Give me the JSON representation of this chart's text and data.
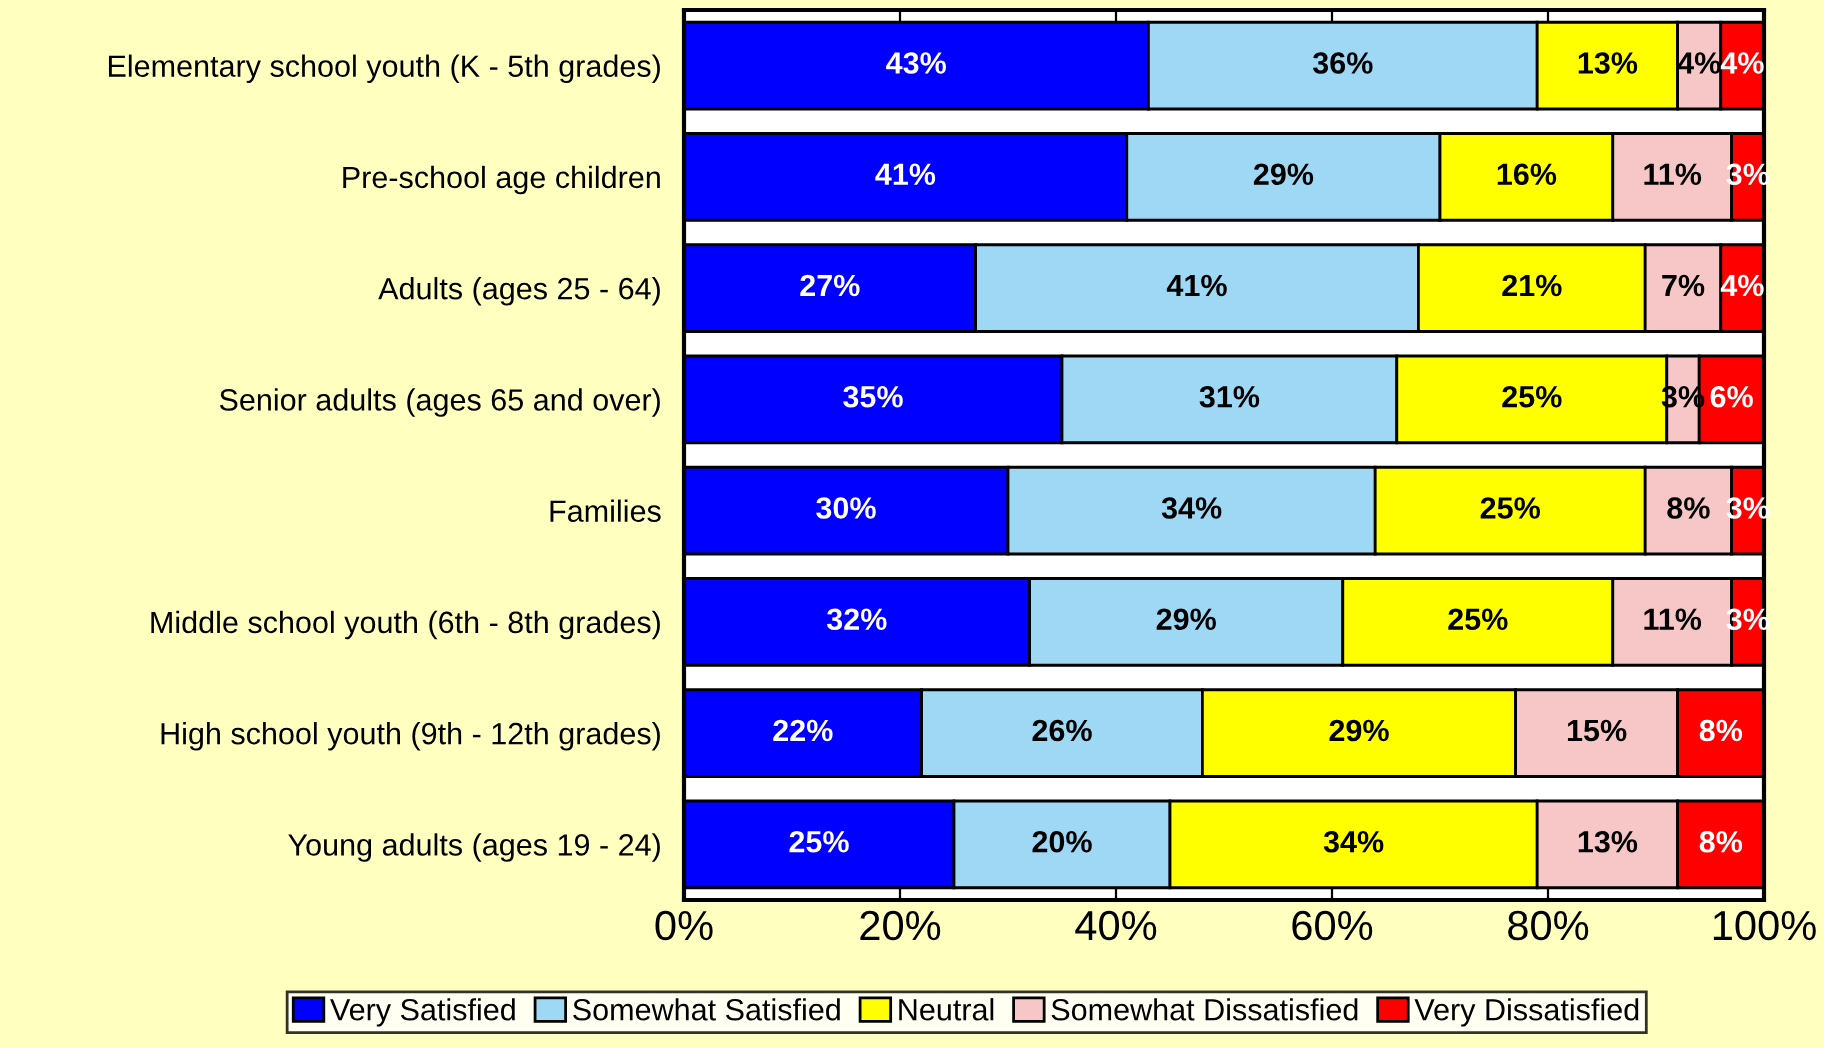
{
  "chart_data": {
    "type": "bar",
    "orientation": "horizontal",
    "stacked": true,
    "grid": false,
    "legend": "bottom",
    "categories": [
      "Elementary school youth (K - 5th grades)",
      "Pre-school age children",
      "Adults (ages 25 - 64)",
      "Senior adults (ages 65 and over)",
      "Families",
      "Middle school youth (6th - 8th grades)",
      "High school youth (9th - 12th grades)",
      "Young adults (ages 19 - 24)"
    ],
    "series": [
      {
        "name": "Very Satisfied",
        "color": "#0000ff",
        "values": [
          43,
          41,
          27,
          35,
          30,
          32,
          22,
          25
        ],
        "value_labels": [
          "43%",
          "41%",
          "27%",
          "35%",
          "30%",
          "32%",
          "22%",
          "25%"
        ]
      },
      {
        "name": "Somewhat Satisfied",
        "color": "#9ed8f5",
        "values": [
          36,
          29,
          41,
          31,
          34,
          29,
          26,
          20
        ],
        "value_labels": [
          "36%",
          "29%",
          "41%",
          "31%",
          "34%",
          "29%",
          "26%",
          "20%"
        ]
      },
      {
        "name": "Neutral",
        "color": "#ffff00",
        "values": [
          13,
          16,
          21,
          25,
          25,
          25,
          29,
          34
        ],
        "value_labels": [
          "13%",
          "16%",
          "21%",
          "25%",
          "25%",
          "25%",
          "29%",
          "34%"
        ]
      },
      {
        "name": "Somewhat Dissatisfied",
        "color": "#f7c6c6",
        "values": [
          4,
          11,
          7,
          3,
          8,
          11,
          15,
          13
        ],
        "value_labels": [
          "4%",
          "11%",
          "7%",
          "3%",
          "8%",
          "11%",
          "15%",
          "13%"
        ]
      },
      {
        "name": "Very Dissatisfied",
        "color": "#ff0000",
        "values": [
          4,
          3,
          4,
          6,
          3,
          3,
          8,
          8
        ],
        "value_labels": [
          "4%",
          "3%",
          "4%",
          "6%",
          "3%",
          "3%",
          "8%",
          "8%"
        ]
      }
    ],
    "xlim": [
      0,
      100
    ],
    "xticks": [
      {
        "value": 0,
        "label": "0%"
      },
      {
        "value": 20,
        "label": "20%"
      },
      {
        "value": 40,
        "label": "40%"
      },
      {
        "value": 60,
        "label": "60%"
      },
      {
        "value": 80,
        "label": "80%"
      },
      {
        "value": 100,
        "label": "100%"
      }
    ]
  }
}
